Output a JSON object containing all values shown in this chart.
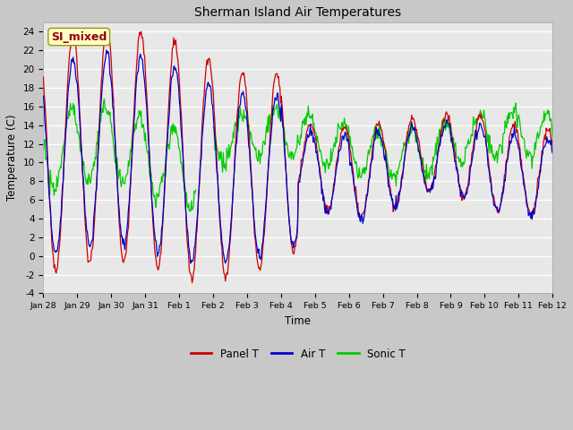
{
  "title": "Sherman Island Air Temperatures",
  "xlabel": "Time",
  "ylabel": "Temperature (C)",
  "ylim": [
    -4,
    25
  ],
  "yticks": [
    -4,
    -2,
    0,
    2,
    4,
    6,
    8,
    10,
    12,
    14,
    16,
    18,
    20,
    22,
    24
  ],
  "annotation_text": "SI_mixed",
  "annotation_bg": "#ffffcc",
  "annotation_fg": "#990000",
  "annotation_edge": "#999900",
  "panel_color": "#cc0000",
  "air_color": "#0000cc",
  "sonic_color": "#00cc00",
  "plot_bg": "#e8e8e8",
  "fig_bg": "#c8c8c8",
  "tick_labels": [
    "Jan 28",
    "Jan 29",
    "Jan 30",
    "Jan 31",
    "Feb 1",
    "Feb 2",
    "Feb 3",
    "Feb 4",
    "Feb 5",
    "Feb 6",
    "Feb 7",
    "Feb 8",
    "Feb 9",
    "Feb 10",
    "Feb 11",
    "Feb 12"
  ],
  "legend_items": [
    "Panel T",
    "Air T",
    "Sonic T"
  ]
}
